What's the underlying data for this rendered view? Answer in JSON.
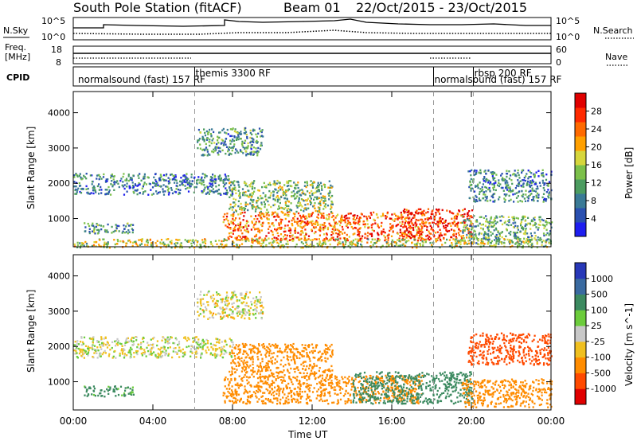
{
  "header": {
    "title": "South Pole Station (fitACF)",
    "beam": "Beam 01",
    "date_range": "22/Oct/2015 - 23/Oct/2015"
  },
  "noise_panel": {
    "left_label": "N.Sky",
    "right_label": "N.Search",
    "left_ticks": [
      "10^5",
      "10^0"
    ],
    "right_ticks": [
      "10^5",
      "10^0"
    ]
  },
  "freq_panel": {
    "left_label": "Freq.",
    "left_unit": "[MHz]",
    "right_label": "Nave",
    "left_ticks": [
      "18",
      "8"
    ],
    "right_ticks": [
      "60",
      "0"
    ]
  },
  "cpid_panel": {
    "label": "CPID",
    "programs": [
      {
        "name": "normalsound (fast) 157 RF",
        "start_hour": 0.2
      },
      {
        "name": "themis 3300 RF",
        "start_hour": 6.1
      },
      {
        "name": "normalsound (fast) 157 RF",
        "start_hour": 18.1
      },
      {
        "name": "rbsp 200 RF",
        "start_hour": 20.1
      },
      {
        "name": "",
        "start_hour": 24
      }
    ]
  },
  "axes": {
    "y_label": "Slant Range [km]",
    "y_ticks": [
      "1000",
      "2000",
      "3000",
      "4000"
    ],
    "x_label": "Time UT",
    "x_ticks": [
      "00:00",
      "04:00",
      "08:00",
      "12:00",
      "16:00",
      "20:00",
      "00:00"
    ]
  },
  "colorbars": {
    "power": {
      "label": "Power [dB]",
      "ticks": [
        "4",
        "8",
        "12",
        "16",
        "20",
        "24",
        "28"
      ]
    },
    "velocity": {
      "label": "Velocity [m s^-1]",
      "ticks": [
        "1000",
        "500",
        "100",
        "25",
        "-25",
        "-100",
        "-500",
        "-1000"
      ]
    }
  },
  "colors": {
    "power_scale": [
      "#1e1ef0",
      "#2a50b0",
      "#3a7a96",
      "#4c9c60",
      "#7cc04a",
      "#d6d63c",
      "#ffa000",
      "#ff6a00",
      "#ff2a00",
      "#e00000"
    ],
    "velocity_scale": [
      "#2838b8",
      "#3a6aa0",
      "#3c8a60",
      "#6ccc3c",
      "#c8c8c8",
      "#f0c020",
      "#ff8c00",
      "#ff4a00",
      "#e00000"
    ],
    "dashed_line": "#999999"
  },
  "chart_data": [
    {
      "type": "heatmap",
      "title": "Power",
      "xlabel": "Time UT",
      "ylabel": "Slant Range [km]",
      "xlim": [
        0,
        24
      ],
      "ylim": [
        200,
        4600
      ],
      "colorbar_label": "Power [dB]",
      "colorbar_range": [
        0,
        32
      ],
      "echo_regions": [
        {
          "t_start": 0.0,
          "t_end": 8.0,
          "range_low": 1700,
          "range_high": 2300,
          "value": 8
        },
        {
          "t_start": 0.5,
          "t_end": 3.0,
          "range_low": 600,
          "range_high": 900,
          "value": 10
        },
        {
          "t_start": 6.2,
          "t_end": 9.5,
          "range_low": 2800,
          "range_high": 3600,
          "value": 10
        },
        {
          "t_start": 7.5,
          "t_end": 17.5,
          "range_low": 400,
          "range_high": 1200,
          "value": 24
        },
        {
          "t_start": 16.5,
          "t_end": 20.0,
          "range_low": 400,
          "range_high": 1300,
          "value": 27
        },
        {
          "t_start": 19.5,
          "t_end": 24.0,
          "range_low": 300,
          "range_high": 1100,
          "value": 12
        },
        {
          "t_start": 19.8,
          "t_end": 24.0,
          "range_low": 1500,
          "range_high": 2400,
          "value": 9
        },
        {
          "t_start": 7.8,
          "t_end": 13.0,
          "range_low": 1200,
          "range_high": 2100,
          "value": 14
        },
        {
          "t_start": 0.0,
          "t_end": 24.0,
          "range_low": 200,
          "range_high": 450,
          "value": 16
        }
      ]
    },
    {
      "type": "heatmap",
      "title": "Velocity",
      "xlabel": "Time UT",
      "ylabel": "Slant Range [km]",
      "xlim": [
        0,
        24
      ],
      "ylim": [
        200,
        4600
      ],
      "colorbar_label": "Velocity [m s^-1]",
      "colorbar_range": [
        -1000,
        1000
      ],
      "echo_regions": [
        {
          "t_start": 0.0,
          "t_end": 8.0,
          "range_low": 1700,
          "range_high": 2300,
          "value": 0
        },
        {
          "t_start": 0.5,
          "t_end": 3.0,
          "range_low": 600,
          "range_high": 900,
          "value": 150
        },
        {
          "t_start": 6.2,
          "t_end": 9.5,
          "range_low": 2800,
          "range_high": 3600,
          "value": -20
        },
        {
          "t_start": 7.5,
          "t_end": 17.5,
          "range_low": 400,
          "range_high": 1200,
          "value": -300
        },
        {
          "t_start": 14.0,
          "t_end": 20.0,
          "range_low": 400,
          "range_high": 1300,
          "value": 200
        },
        {
          "t_start": 19.5,
          "t_end": 24.0,
          "range_low": 300,
          "range_high": 1100,
          "value": -200
        },
        {
          "t_start": 19.8,
          "t_end": 24.0,
          "range_low": 1500,
          "range_high": 2400,
          "value": -600
        },
        {
          "t_start": 7.8,
          "t_end": 13.0,
          "range_low": 1200,
          "range_high": 2100,
          "value": -400
        }
      ]
    }
  ]
}
